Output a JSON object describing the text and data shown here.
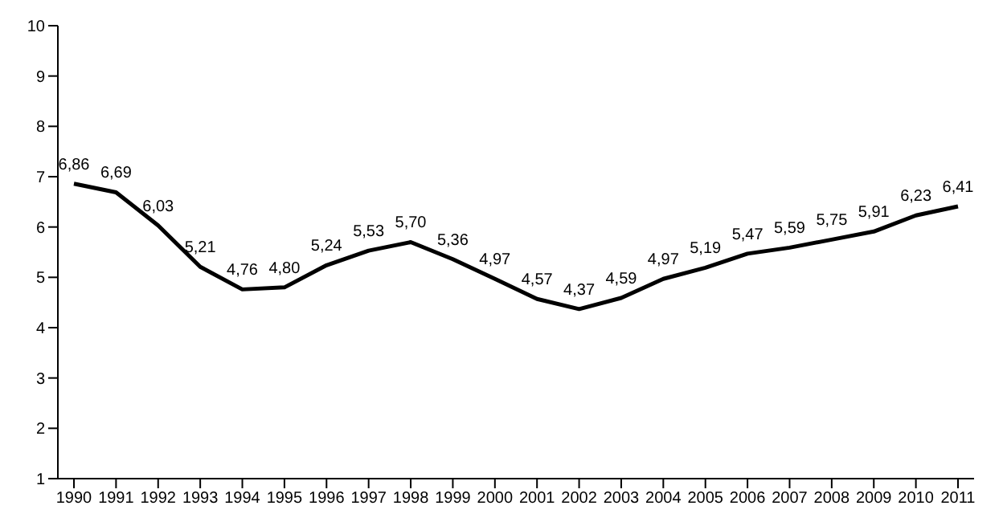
{
  "chart_data": {
    "type": "line",
    "categories": [
      "1990",
      "1991",
      "1992",
      "1993",
      "1994",
      "1995",
      "1996",
      "1997",
      "1998",
      "1999",
      "2000",
      "2001",
      "2002",
      "2003",
      "2004",
      "2005",
      "2006",
      "2007",
      "2008",
      "2009",
      "2010",
      "2011"
    ],
    "series": [
      {
        "color": "#000000",
        "values": [
          6.86,
          6.69,
          6.03,
          5.21,
          4.76,
          4.8,
          5.24,
          5.53,
          5.7,
          5.36,
          4.97,
          4.57,
          4.37,
          4.59,
          4.97,
          5.19,
          5.47,
          5.59,
          5.75,
          5.91,
          6.23,
          6.41
        ],
        "value_labels": [
          "6,86",
          "6,69",
          "6,03",
          "5,21",
          "4,76",
          "4,80",
          "5,24",
          "5,53",
          "5,70",
          "5,36",
          "4,97",
          "4,57",
          "4,37",
          "4,59",
          "4,97",
          "5,19",
          "5,47",
          "5,59",
          "5,75",
          "5,91",
          "6,23",
          "6,41"
        ]
      }
    ],
    "ylim": [
      1,
      10
    ],
    "yticks": [
      1,
      2,
      3,
      4,
      5,
      6,
      7,
      8,
      9,
      10
    ],
    "grid": false,
    "legend": false,
    "marker": "none",
    "line_style": "solid"
  }
}
